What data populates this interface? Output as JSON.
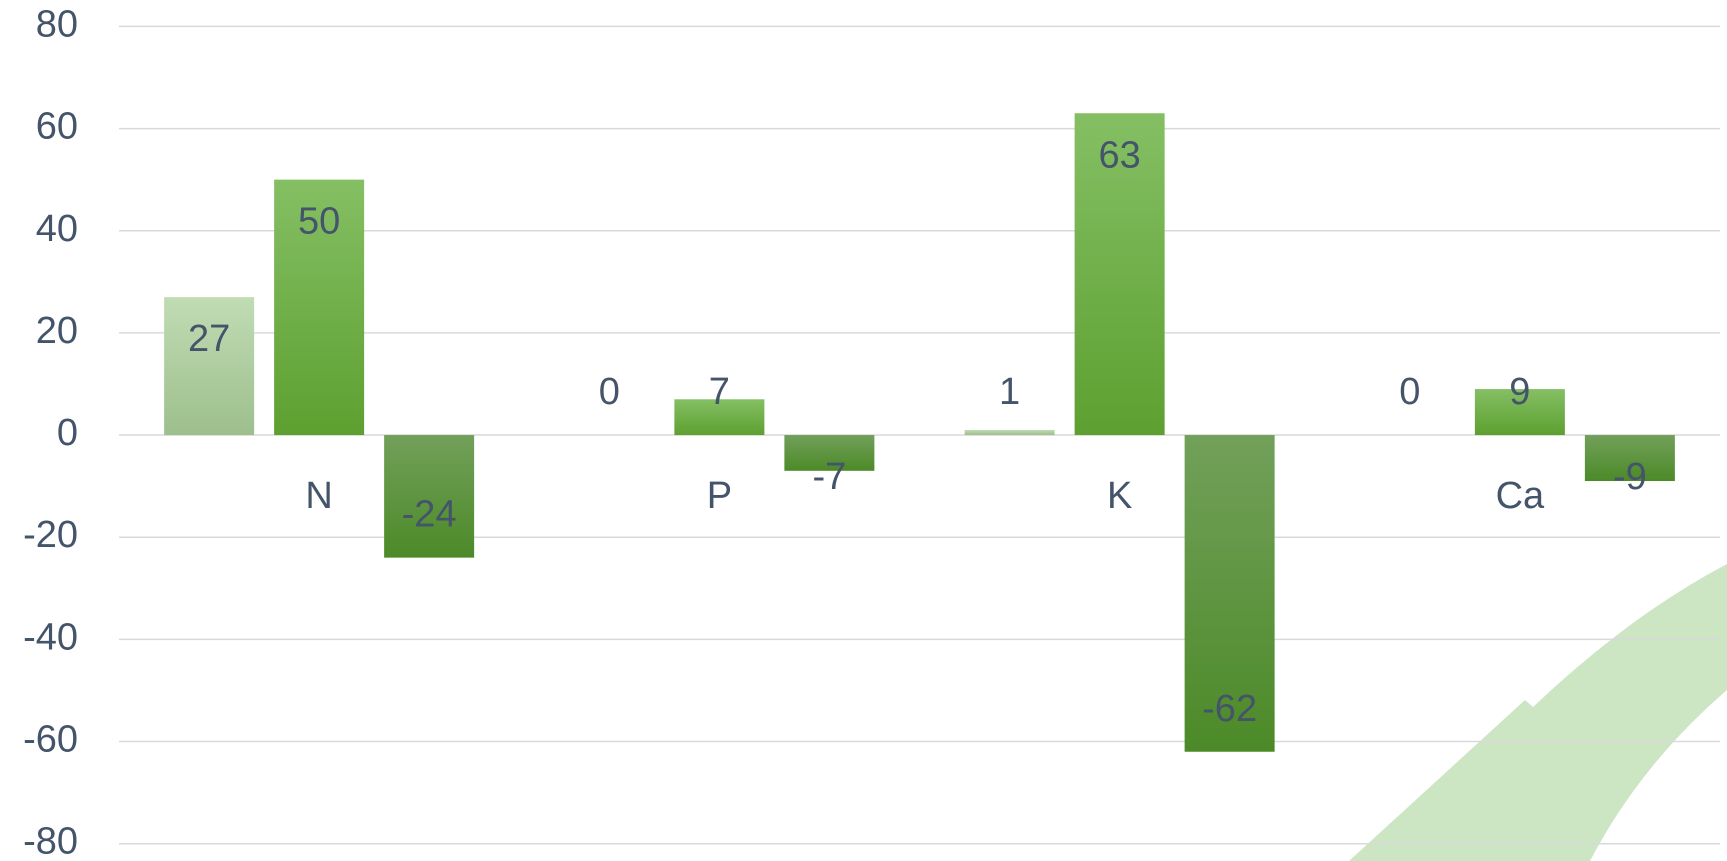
{
  "chart_data": {
    "type": "bar",
    "categories": [
      "N",
      "P",
      "K",
      "Ca"
    ],
    "series": [
      {
        "color": "#b2d3a4",
        "values": [
          27,
          0,
          1,
          0
        ]
      },
      {
        "color": "#6db244",
        "values": [
          50,
          7,
          63,
          9
        ]
      },
      {
        "color": "#5e9440",
        "values": [
          -24,
          -7,
          -62,
          -9
        ]
      }
    ],
    "ylim": [
      -80,
      80
    ],
    "yticks": [
      -80,
      -60,
      -40,
      -20,
      0,
      20,
      40,
      60,
      80
    ],
    "grid": true
  }
}
